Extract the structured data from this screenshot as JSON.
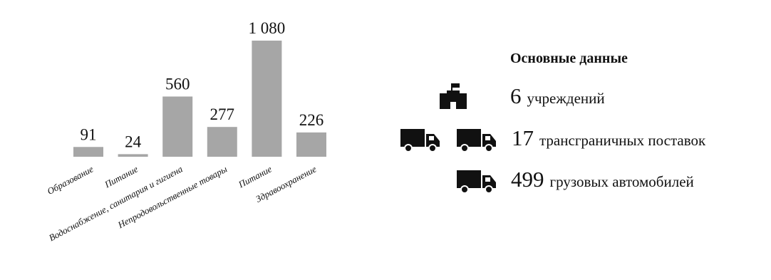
{
  "chart_data": {
    "type": "bar",
    "categories": [
      "Образование",
      "Питание",
      "Водоснабжение, санитария и гигиена",
      "Непродовольственные товары",
      "Питание",
      "Здравоохранение"
    ],
    "values": [
      91,
      24,
      560,
      277,
      1080,
      226
    ],
    "value_labels": [
      "91",
      "24",
      "560",
      "277",
      "1 080",
      "226"
    ],
    "ylim": [
      0,
      1080
    ],
    "grid": false,
    "bar_color": "#a6a6a6"
  },
  "key_figures": {
    "title": "Основные данные",
    "items": [
      {
        "icon": "building-flag-icon",
        "value": "6",
        "label": "учреждений"
      },
      {
        "icon": "truck-icon",
        "value": "17",
        "label": "трансграничных поставок"
      },
      {
        "icon": "truck-icon",
        "value": "499",
        "label": "грузовых автомобилей"
      }
    ]
  },
  "colors": {
    "bars": "#a6a6a6",
    "icons": "#111111",
    "text": "#111111"
  }
}
